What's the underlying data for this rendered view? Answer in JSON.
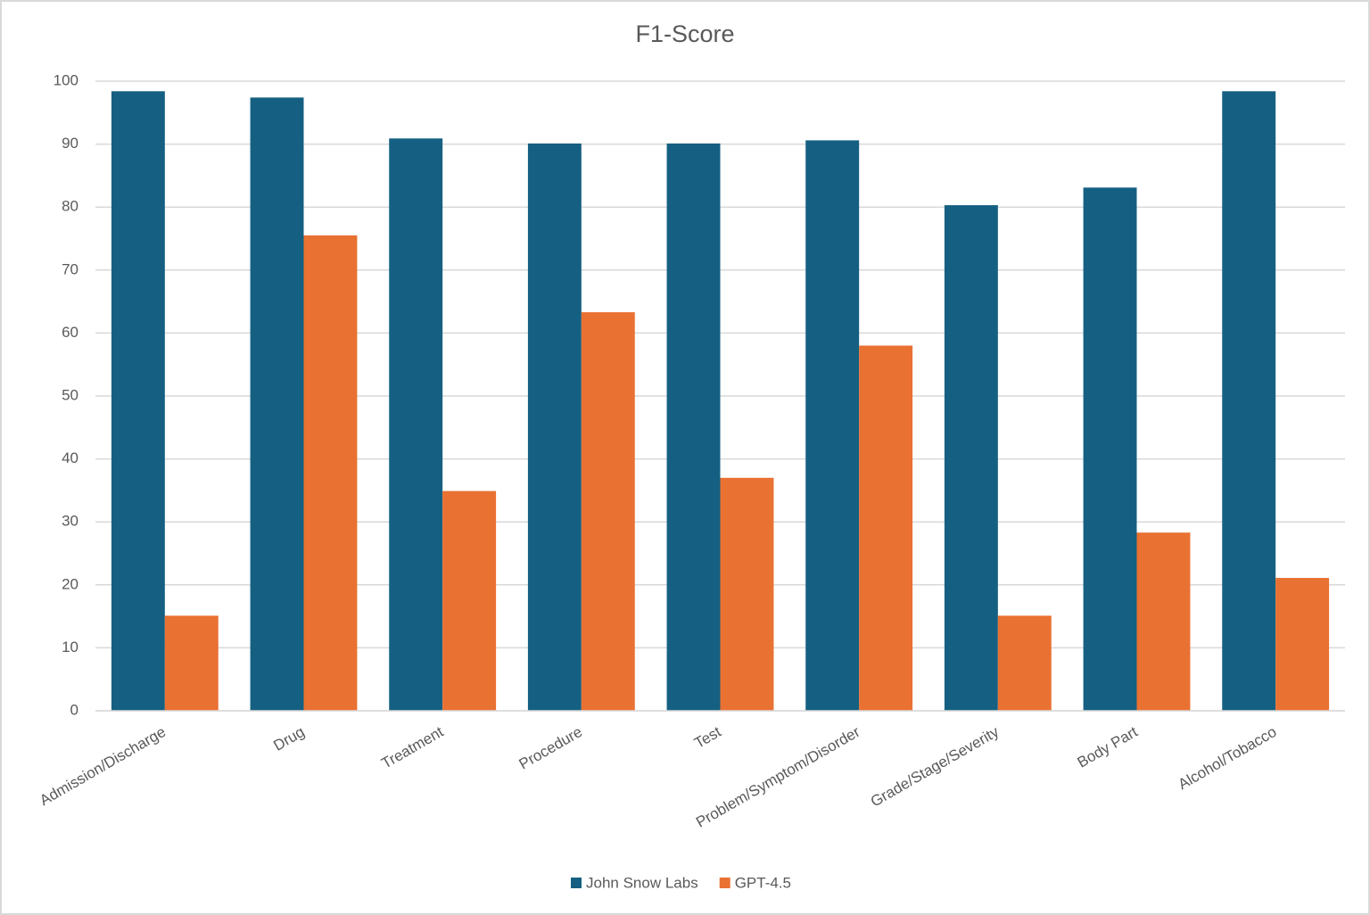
{
  "chart_data": {
    "type": "bar",
    "title": "F1-Score",
    "categories": [
      "Admission/Discharge",
      "Drug",
      "Treatment",
      "Procedure",
      "Test",
      "Problem/Symptom/Disorder",
      "Grade/Stage/Severity",
      "Body Part",
      "Alcohol/Tobacco"
    ],
    "series": [
      {
        "name": "John Snow Labs",
        "color": "#156082",
        "values": [
          98.4,
          97.4,
          90.9,
          90.1,
          90.1,
          90.6,
          80.3,
          83.1,
          98.4
        ]
      },
      {
        "name": "GPT-4.5",
        "color": "#e97132",
        "values": [
          15.1,
          75.5,
          34.9,
          63.3,
          37.0,
          58.0,
          15.1,
          28.3,
          21.1
        ]
      }
    ],
    "ylim": [
      0,
      100
    ],
    "yticks": [
      0,
      10,
      20,
      30,
      40,
      50,
      60,
      70,
      80,
      90,
      100
    ],
    "grid": true,
    "legend": "bottom"
  }
}
